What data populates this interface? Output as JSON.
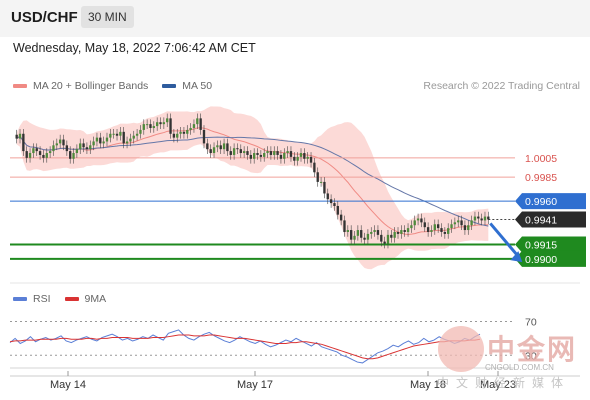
{
  "header": {
    "pair": "USD/CHF",
    "timeframe": "30 MIN"
  },
  "datetime": "Wednesday, May 18, 2022 7:06:42 AM CET",
  "legend": {
    "ma20": {
      "label": "MA 20 + Bollinger Bands",
      "color": "#f08a84"
    },
    "ma50": {
      "label": "MA 50",
      "color": "#2e5c9e"
    }
  },
  "copyright": "Research © 2022 Trading Central",
  "rsi_legend": {
    "rsi": {
      "label": "RSI",
      "color": "#5b7fd6"
    },
    "ma9": {
      "label": "9MA",
      "color": "#d93333"
    }
  },
  "watermark": {
    "title": "中金网",
    "sub": "CNGOLD.COM.CN",
    "sub2": "中文财经新媒体"
  },
  "chart_data": [
    {
      "type": "candlestick",
      "title": "",
      "ylim": [
        0.9875,
        1.0063
      ],
      "x_ticks": [
        "May 14",
        "May 17",
        "May 18",
        "May 23"
      ],
      "levels": [
        {
          "value": 1.0005,
          "label": "1.0005",
          "kind": "resistance",
          "color": "#f0a09a"
        },
        {
          "value": 0.9985,
          "label": "0.9985",
          "kind": "resistance",
          "color": "#f0a09a"
        },
        {
          "value": 0.996,
          "label": "0.9960",
          "kind": "pivot",
          "color": "#2f6fd0"
        },
        {
          "value": 0.9915,
          "label": "0.9915",
          "kind": "support",
          "color": "#1f8a1f"
        },
        {
          "value": 0.99,
          "label": "0.9900",
          "kind": "support",
          "color": "#1f8a1f"
        }
      ],
      "last_price": {
        "value": 0.9941,
        "label": "0.9941",
        "color": "#2b2b2b"
      },
      "forecast": "down",
      "overlays": [
        "MA 20 + Bollinger Bands",
        "MA 50"
      ],
      "series_closes": [
        1.0025,
        1.003,
        1.0012,
        1.0005,
        1.001,
        1.0015,
        1.0012,
        1.0008,
        1.0005,
        1.001,
        1.0012,
        1.0018,
        1.002,
        1.0024,
        1.0018,
        1.0012,
        1.0004,
        1.001,
        1.0014,
        1.002,
        1.0016,
        1.0014,
        1.0018,
        1.0022,
        1.0026,
        1.002,
        1.0022,
        1.0026,
        1.003,
        1.003,
        1.0028,
        1.0032,
        1.002,
        1.0022,
        1.0025,
        1.0028,
        1.003,
        1.0034,
        1.004,
        1.004,
        1.0036,
        1.0038,
        1.0042,
        1.004,
        1.0042,
        1.0046,
        1.003,
        1.0026,
        1.003,
        1.0032,
        1.003,
        1.0034,
        1.0036,
        1.004,
        1.0046,
        1.0034,
        1.002,
        1.0014,
        1.001,
        1.0016,
        1.0018,
        1.0014,
        1.002,
        1.0012,
        1.0008,
        1.0015,
        1.0014,
        1.001,
        1.0012,
        1.0008,
        1.0004,
        1.001,
        1.0008,
        1.0006,
        1.001,
        1.0012,
        1.0008,
        1.0012,
        1.0008,
        1.0004,
        1.001,
        1.0012,
        1.0006,
        1.0002,
        1.0006,
        1.001,
        1.0004,
        1.0006,
        1.0,
        0.999,
        0.998,
        0.998,
        0.9968,
        0.9962,
        0.9958,
        0.9955,
        0.9946,
        0.994,
        0.9928,
        0.993,
        0.992,
        0.9924,
        0.993,
        0.9922,
        0.992,
        0.9926,
        0.9928,
        0.993,
        0.9925,
        0.9918,
        0.9916,
        0.9925,
        0.9922,
        0.9928,
        0.9926,
        0.993,
        0.9928,
        0.9932,
        0.9935,
        0.994,
        0.9942,
        0.9938,
        0.9933,
        0.9928,
        0.993,
        0.9936,
        0.9932,
        0.9928,
        0.9926,
        0.9932,
        0.9936,
        0.9938,
        0.994,
        0.9935,
        0.993,
        0.9935,
        0.994,
        0.9944,
        0.9942,
        0.994,
        0.9944,
        0.9941
      ]
    },
    {
      "type": "line",
      "title": "",
      "ylim": [
        15,
        80
      ],
      "y_ticks": [
        70,
        30
      ],
      "series": [
        {
          "name": "RSI",
          "color": "#5b7fd6",
          "values": [
            45,
            50,
            44,
            47,
            52,
            46,
            49,
            51,
            48,
            50,
            53,
            47,
            45,
            48,
            50,
            52,
            49,
            47,
            51,
            53,
            55,
            52,
            48,
            50,
            47,
            49,
            52,
            50,
            54,
            51,
            48,
            56,
            58,
            60,
            54,
            50,
            48,
            52,
            55,
            57,
            53,
            50,
            47,
            45,
            48,
            52,
            49,
            46,
            44,
            47,
            43,
            40,
            42,
            45,
            48,
            46,
            50,
            47,
            44,
            41,
            45,
            40,
            38,
            36,
            34,
            30,
            28,
            25,
            22,
            21,
            25,
            29,
            33,
            35,
            38,
            42,
            40,
            44,
            47,
            43,
            45,
            50,
            46,
            48,
            52,
            49,
            47,
            44,
            46,
            50,
            48,
            52,
            55
          ]
        },
        {
          "name": "9MA",
          "color": "#d93333",
          "values": [
            46,
            47,
            47,
            48,
            48,
            48,
            49,
            49,
            49,
            49,
            50,
            50,
            49,
            49,
            49,
            50,
            50,
            49,
            50,
            50,
            51,
            51,
            51,
            51,
            50,
            50,
            50,
            50,
            51,
            51,
            51,
            52,
            53,
            54,
            54,
            54,
            53,
            53,
            53,
            54,
            54,
            53,
            52,
            51,
            50,
            50,
            50,
            49,
            48,
            47,
            46,
            45,
            44,
            44,
            44,
            45,
            45,
            46,
            46,
            45,
            44,
            43,
            41,
            39,
            37,
            35,
            33,
            31,
            29,
            27,
            26,
            26,
            27,
            29,
            31,
            33,
            35,
            37,
            39,
            41,
            42,
            43,
            44,
            45,
            46,
            46,
            47,
            47,
            47,
            47,
            48,
            48,
            49
          ]
        }
      ]
    }
  ]
}
